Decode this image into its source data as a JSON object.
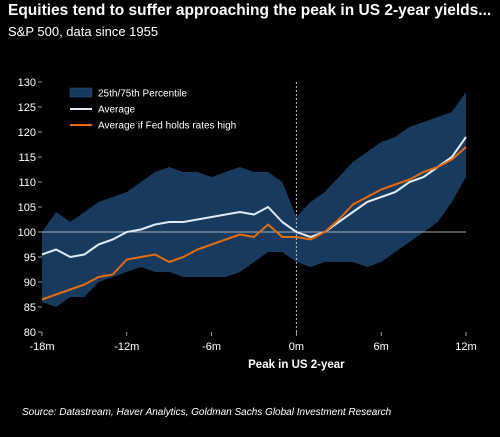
{
  "header": {
    "title": "Equities tend to suffer approaching the peak in US 2-year yields...",
    "subtitle": "S&P 500, data since 1955"
  },
  "footer": {
    "source": "Source: Datastream, Haver Analytics, Goldman Sachs Global Investment Research"
  },
  "colors": {
    "background": "#000000",
    "band": "#173a5e",
    "average": "#dfe9f7",
    "fed_high": "#e46c0a",
    "zero_line": "#bfbfbf",
    "baseline": "#d9d9d9"
  },
  "chart_data": {
    "type": "line",
    "title": "Equities tend to suffer approaching the peak in US 2-year yields...",
    "subtitle": "S&P 500, data since 1955",
    "xlabel": "Peak in US 2-year",
    "ylabel": "",
    "xlim": [
      -18,
      12
    ],
    "ylim": [
      80,
      130
    ],
    "x_tick_values": [
      -18,
      -12,
      -6,
      0,
      6,
      12
    ],
    "x_tick_labels": [
      "-18m",
      "-12m",
      "-6m",
      "0m",
      "6m",
      "12m"
    ],
    "y_ticks": [
      80,
      85,
      90,
      95,
      100,
      105,
      110,
      115,
      120,
      125,
      130
    ],
    "reference_line_y": 100,
    "legend_position": "top-left",
    "x": [
      -18,
      -17,
      -16,
      -15,
      -14,
      -13,
      -12,
      -11,
      -10,
      -9,
      -8,
      -7,
      -6,
      -5,
      -4,
      -3,
      -2,
      -1,
      0,
      1,
      2,
      3,
      4,
      5,
      6,
      7,
      8,
      9,
      10,
      11,
      12
    ],
    "series": [
      {
        "name": "25th/75th Percentile",
        "kind": "band",
        "upper": [
          100,
          104,
          102,
          104,
          106,
          107,
          108,
          110,
          112,
          113,
          112,
          112,
          111,
          112,
          113,
          112,
          112,
          110,
          103,
          106,
          108,
          111,
          114,
          116,
          118,
          119,
          121,
          122,
          123,
          124,
          128
        ],
        "lower": [
          86,
          85,
          87,
          87,
          90,
          91,
          92,
          93,
          92,
          92,
          91,
          91,
          91,
          91,
          92,
          94,
          96,
          96,
          94,
          93,
          94,
          94,
          94,
          93,
          94,
          96,
          98,
          100,
          102,
          106,
          111
        ]
      },
      {
        "name": "Average",
        "kind": "line",
        "values": [
          95.5,
          96.5,
          95,
          95.5,
          97.5,
          98.5,
          100,
          100.5,
          101.5,
          102,
          102,
          102.5,
          103,
          103.5,
          104,
          103.5,
          105,
          102,
          100,
          99,
          100,
          102,
          104,
          106,
          107,
          108,
          110,
          111,
          113,
          115,
          119
        ]
      },
      {
        "name": "Average if Fed holds rates high",
        "kind": "line",
        "values": [
          86.5,
          87.5,
          88.5,
          89.5,
          91,
          91.5,
          94.5,
          95,
          95.5,
          94,
          95,
          96.5,
          97.5,
          98.5,
          99.5,
          99,
          101.5,
          99,
          99,
          98.5,
          100,
          102.5,
          105.5,
          107,
          108.5,
          109.5,
          110.5,
          112,
          113,
          114.5,
          117
        ]
      }
    ]
  }
}
